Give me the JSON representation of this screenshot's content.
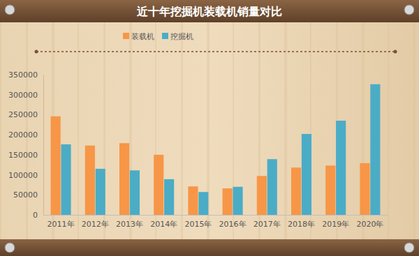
{
  "chart_data": {
    "type": "bar",
    "title": "近十年挖掘机装载机销量对比",
    "categories": [
      "2011年",
      "2012年",
      "2013年",
      "2014年",
      "2015年",
      "2016年",
      "2017年",
      "2018年",
      "2019年",
      "2020年"
    ],
    "series": [
      {
        "name": "装载机",
        "color": "#f79646",
        "values": [
          246000,
          173000,
          179000,
          150000,
          71000,
          66000,
          97000,
          118000,
          123000,
          129000
        ]
      },
      {
        "name": "挖掘机",
        "color": "#4bacc6",
        "values": [
          176000,
          115000,
          111000,
          89000,
          57000,
          70000,
          139000,
          202000,
          235000,
          326000
        ]
      }
    ],
    "ylim": [
      0,
      350000
    ],
    "yticks": [
      0,
      50000,
      100000,
      150000,
      200000,
      250000,
      300000,
      350000
    ],
    "grid": false,
    "legend": "top"
  }
}
